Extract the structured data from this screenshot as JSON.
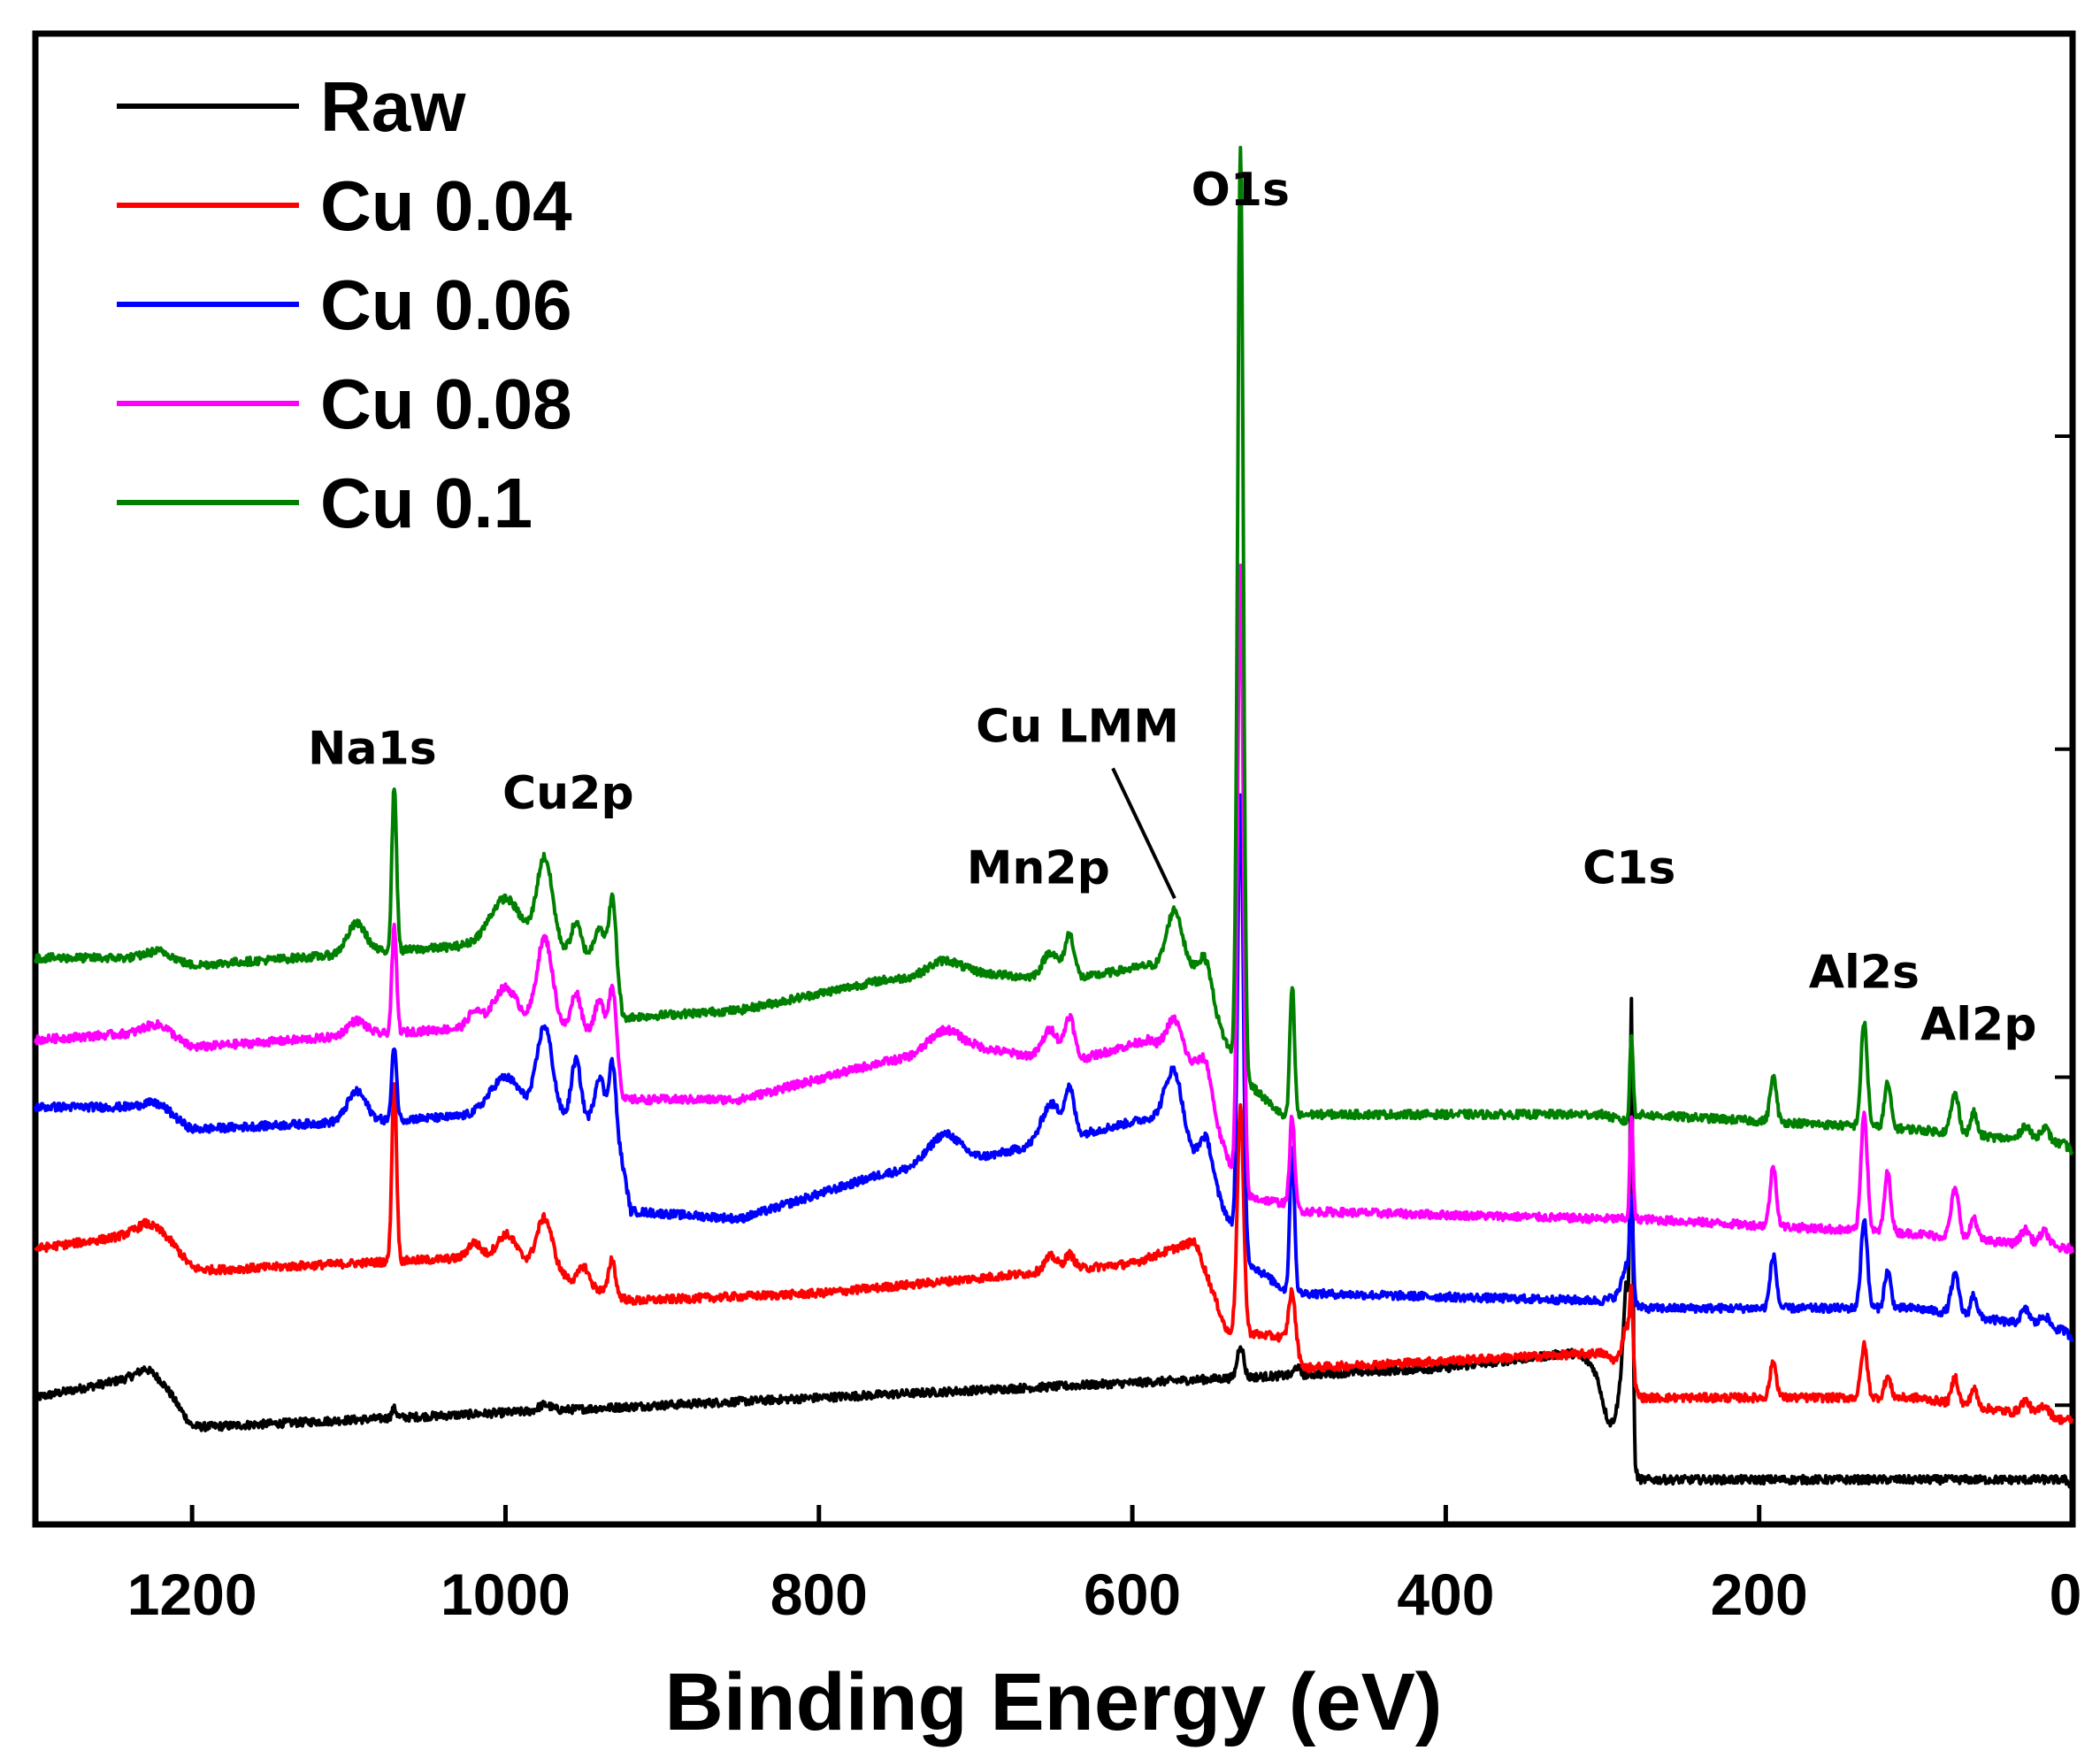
{
  "chart_data": {
    "type": "line",
    "title": "",
    "xlabel": "Binding Energy (eV)",
    "ylabel": "",
    "xlim": [
      1300,
      0
    ],
    "ylim": [
      0,
      100
    ],
    "x_ticks": [
      1200,
      1000,
      800,
      600,
      400,
      200,
      0
    ],
    "y_ticks_visible": false,
    "grid": false,
    "legend_position": "top-left",
    "series": [
      {
        "name": "Raw",
        "color": "#000000",
        "baseline": [
          [
            1300,
            8.5
          ],
          [
            1230,
            10
          ],
          [
            1200,
            6.5
          ],
          [
            1000,
            7.5
          ],
          [
            800,
            8.5
          ],
          [
            600,
            9.5
          ],
          [
            400,
            10.5
          ],
          [
            320,
            11.5
          ],
          [
            300,
            10.5
          ],
          [
            285,
            10
          ],
          [
            279,
            3
          ],
          [
            250,
            3
          ],
          [
            100,
            3
          ],
          [
            5,
            3
          ],
          [
            0,
            2.6
          ]
        ],
        "peaks": [
          [
            1220,
            0.8,
            10
          ],
          [
            1071,
            0.6,
            1.5
          ],
          [
            975,
            0.4,
            4
          ],
          [
            531,
            2.2,
            2
          ],
          [
            495,
            0.6,
            1.5
          ],
          [
            295,
            -3.5,
            5
          ],
          [
            284,
            7,
            2.5
          ],
          [
            281.5,
            25,
            0.8
          ]
        ]
      },
      {
        "name": "Cu 0.04",
        "color": "#ff0000",
        "baseline": [
          [
            1300,
            18.5
          ],
          [
            1230,
            19.5
          ],
          [
            1200,
            17
          ],
          [
            1000,
            18
          ],
          [
            920,
            15
          ],
          [
            800,
            15.5
          ],
          [
            600,
            17.5
          ],
          [
            560,
            19
          ],
          [
            540,
            13
          ],
          [
            500,
            12.5
          ],
          [
            490,
            10.5
          ],
          [
            300,
            11.5
          ],
          [
            285,
            10.5
          ],
          [
            279,
            8.5
          ],
          [
            100,
            8.5
          ],
          [
            5,
            7
          ],
          [
            0,
            7
          ]
        ],
        "peaks": [
          [
            1220,
            1,
            12
          ],
          [
            1071,
            12,
            1.5
          ],
          [
            1020,
            1,
            4
          ],
          [
            999,
            1.5,
            6
          ],
          [
            975,
            3.5,
            5
          ],
          [
            950,
            1.2,
            3
          ],
          [
            932,
            2.4,
            2
          ],
          [
            652,
            1,
            4
          ],
          [
            640,
            1,
            3
          ],
          [
            531,
            15,
            2
          ],
          [
            498,
            3.5,
            2
          ],
          [
            284,
            3,
            3
          ],
          [
            281.5,
            4.5,
            1
          ],
          [
            191,
            2.4,
            2
          ],
          [
            133,
            3.5,
            2
          ],
          [
            118,
            1.4,
            2
          ],
          [
            75,
            1.8,
            2
          ],
          [
            63,
            1.2,
            2
          ],
          [
            30,
            0.9,
            3
          ],
          [
            18,
            0.8,
            3
          ]
        ]
      },
      {
        "name": "Cu 0.06",
        "color": "#0000ff",
        "baseline": [
          [
            1300,
            28
          ],
          [
            1230,
            28
          ],
          [
            1200,
            26.5
          ],
          [
            1000,
            27.5
          ],
          [
            930,
            27
          ],
          [
            920,
            21
          ],
          [
            850,
            20.5
          ],
          [
            760,
            23.5
          ],
          [
            700,
            24.5
          ],
          [
            620,
            26.5
          ],
          [
            580,
            27.5
          ],
          [
            550,
            23
          ],
          [
            525,
            17.5
          ],
          [
            500,
            15.5
          ],
          [
            490,
            15.5
          ],
          [
            300,
            15
          ],
          [
            285,
            15.5
          ],
          [
            279,
            14.5
          ],
          [
            100,
            14.5
          ],
          [
            5,
            13
          ],
          [
            0,
            12.5
          ]
        ],
        "peaks": [
          [
            1220,
            0.6,
            8
          ],
          [
            1095,
            2,
            6
          ],
          [
            1071,
            5,
            1.5
          ],
          [
            1000,
            2.5,
            10
          ],
          [
            975,
            6,
            5
          ],
          [
            955,
            4,
            3
          ],
          [
            940,
            3,
            3
          ],
          [
            932,
            4,
            2
          ],
          [
            720,
            2,
            10
          ],
          [
            652,
            2.5,
            6
          ],
          [
            640,
            3,
            3
          ],
          [
            573,
            4,
            5
          ],
          [
            553,
            2.5,
            4
          ],
          [
            531,
            30,
            1.8
          ],
          [
            498,
            10,
            1.5
          ],
          [
            284,
            2,
            3
          ],
          [
            281.5,
            6,
            1
          ],
          [
            191,
            3.5,
            2
          ],
          [
            133,
            6,
            2
          ],
          [
            118,
            2.5,
            2
          ],
          [
            75,
            2.6,
            2.5
          ],
          [
            63,
            1.5,
            2
          ],
          [
            30,
            1,
            3
          ],
          [
            18,
            0.8,
            3
          ]
        ]
      },
      {
        "name": "Cu 0.08",
        "color": "#ff00ff",
        "baseline": [
          [
            1300,
            32.5
          ],
          [
            1230,
            33
          ],
          [
            1200,
            32
          ],
          [
            1000,
            33.5
          ],
          [
            930,
            33
          ],
          [
            925,
            28.5
          ],
          [
            850,
            28.5
          ],
          [
            760,
            31
          ],
          [
            700,
            32
          ],
          [
            640,
            31
          ],
          [
            590,
            32.5
          ],
          [
            560,
            30.5
          ],
          [
            530,
            22
          ],
          [
            500,
            21.5
          ],
          [
            490,
            21
          ],
          [
            300,
            20.5
          ],
          [
            285,
            20.5
          ],
          [
            279,
            20.5
          ],
          [
            100,
            19.5
          ],
          [
            5,
            18.5
          ],
          [
            0,
            18.5
          ]
        ],
        "peaks": [
          [
            1220,
            0.8,
            8
          ],
          [
            1095,
            1,
            6
          ],
          [
            1071,
            7,
            1.5
          ],
          [
            1020,
            1,
            4
          ],
          [
            1000,
            2.5,
            8
          ],
          [
            975,
            6,
            5
          ],
          [
            955,
            2.5,
            3
          ],
          [
            940,
            2,
            3
          ],
          [
            932,
            3,
            2
          ],
          [
            720,
            1.5,
            10
          ],
          [
            652,
            2,
            5
          ],
          [
            640,
            3,
            3
          ],
          [
            573,
            2.5,
            5
          ],
          [
            553,
            2.5,
            4
          ],
          [
            531,
            42,
            1.8
          ],
          [
            498,
            6,
            1.5
          ],
          [
            281.5,
            7,
            1
          ],
          [
            191,
            4,
            2
          ],
          [
            133,
            8,
            2
          ],
          [
            118,
            4,
            2
          ],
          [
            75,
            3.2,
            2.5
          ],
          [
            63,
            1.5,
            2
          ],
          [
            30,
            1,
            3
          ],
          [
            18,
            1,
            3
          ]
        ]
      },
      {
        "name": "Cu 0.1",
        "color": "#008000",
        "baseline": [
          [
            1300,
            38
          ],
          [
            1230,
            38
          ],
          [
            1200,
            37.5
          ],
          [
            1000,
            39
          ],
          [
            930,
            38
          ],
          [
            925,
            34
          ],
          [
            850,
            34.5
          ],
          [
            760,
            36.5
          ],
          [
            700,
            37
          ],
          [
            640,
            36.5
          ],
          [
            590,
            37.5
          ],
          [
            560,
            37
          ],
          [
            530,
            30
          ],
          [
            500,
            27
          ],
          [
            490,
            27.5
          ],
          [
            300,
            27.5
          ],
          [
            285,
            27
          ],
          [
            279,
            27.5
          ],
          [
            100,
            26.5
          ],
          [
            5,
            25.5
          ],
          [
            0,
            25
          ]
        ],
        "peaks": [
          [
            1220,
            0.6,
            8
          ],
          [
            1095,
            2,
            6
          ],
          [
            1071,
            11,
            1.5
          ],
          [
            1000,
            3,
            10
          ],
          [
            975,
            6,
            5
          ],
          [
            955,
            2,
            3
          ],
          [
            940,
            2,
            3
          ],
          [
            932,
            4,
            2
          ],
          [
            720,
            1,
            10
          ],
          [
            652,
            1.8,
            5
          ],
          [
            640,
            3,
            3
          ],
          [
            573,
            4,
            5
          ],
          [
            553,
            2.5,
            4
          ],
          [
            531,
            62,
            1.8
          ],
          [
            498,
            9,
            1.5
          ],
          [
            281.5,
            5.5,
            1
          ],
          [
            191,
            3,
            2
          ],
          [
            133,
            7,
            2
          ],
          [
            118,
            3,
            2
          ],
          [
            75,
            2.6,
            2.5
          ],
          [
            63,
            1.5,
            2
          ],
          [
            30,
            1,
            3
          ],
          [
            18,
            1,
            3
          ]
        ]
      }
    ],
    "annotations": [
      {
        "text": "O1s",
        "x": 531,
        "y": 88.5
      },
      {
        "text": "Na1s",
        "x": 1085,
        "y": 51
      },
      {
        "text": "Cu2p",
        "x": 960,
        "y": 48
      },
      {
        "text": "Cu LMM",
        "x": 635,
        "y": 52.5,
        "pointer_to": [
          573,
          42
        ]
      },
      {
        "text": "Mn2p",
        "x": 660,
        "y": 43
      },
      {
        "text": "C1s",
        "x": 283,
        "y": 43
      },
      {
        "text": "Al2s",
        "x": 133,
        "y": 36
      },
      {
        "text": "Al2p",
        "x": 60,
        "y": 32.5
      }
    ]
  }
}
